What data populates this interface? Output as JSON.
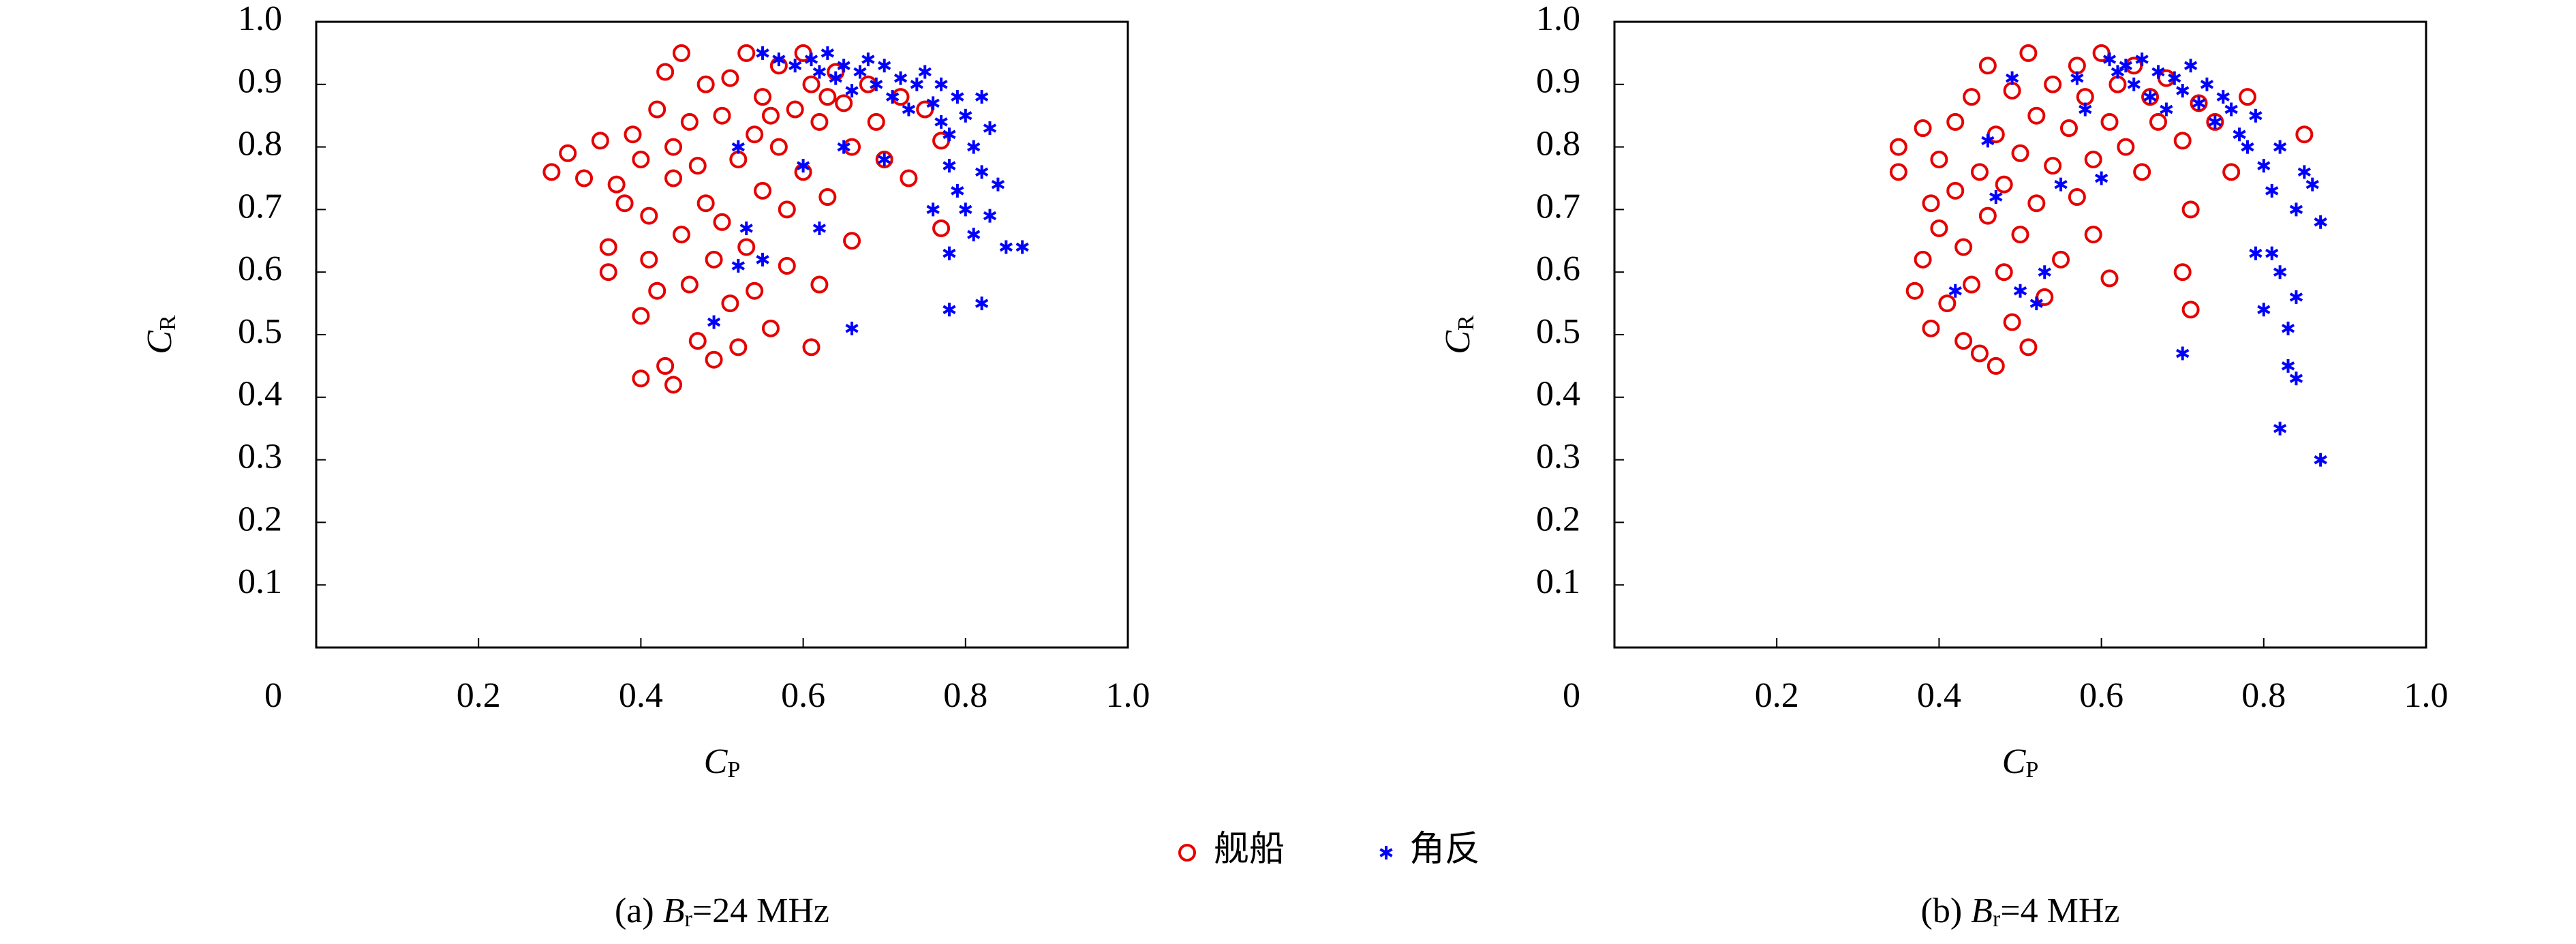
{
  "chart_data": [
    {
      "type": "scatter",
      "xlabel": {
        "symbol": "C",
        "subscript": "P"
      },
      "ylabel": {
        "symbol": "C",
        "subscript": "R"
      },
      "caption": {
        "prefix": "(a) ",
        "symbol": "B",
        "subscript": "r",
        "suffix": "=24 MHz"
      },
      "xlim": [
        0,
        1
      ],
      "ylim": [
        0,
        1
      ],
      "xticks": [
        0,
        0.2,
        0.4,
        0.6,
        0.8,
        {
          "value": 1,
          "label": "1.0"
        }
      ],
      "yticks": [
        0.1,
        0.2,
        0.3,
        0.4,
        0.5,
        0.6,
        0.7,
        0.8,
        0.9,
        {
          "value": 1,
          "label": "1.0"
        }
      ],
      "series": [
        {
          "name": "舰船",
          "color": "#e60000",
          "marker": "circle",
          "x": [
            0.29,
            0.31,
            0.33,
            0.35,
            0.36,
            0.36,
            0.37,
            0.38,
            0.39,
            0.4,
            0.4,
            0.4,
            0.41,
            0.41,
            0.42,
            0.42,
            0.43,
            0.43,
            0.44,
            0.44,
            0.45,
            0.45,
            0.46,
            0.46,
            0.47,
            0.47,
            0.48,
            0.48,
            0.49,
            0.49,
            0.5,
            0.5,
            0.51,
            0.51,
            0.52,
            0.52,
            0.53,
            0.53,
            0.54,
            0.54,
            0.55,
            0.55,
            0.56,
            0.57,
            0.57,
            0.58,
            0.58,
            0.59,
            0.6,
            0.6,
            0.61,
            0.61,
            0.62,
            0.62,
            0.63,
            0.64,
            0.65,
            0.66,
            0.66,
            0.68,
            0.69,
            0.7,
            0.72,
            0.73,
            0.75,
            0.77,
            0.77,
            0.63,
            0.56,
            0.44
          ],
          "y": [
            0.76,
            0.79,
            0.75,
            0.81,
            0.64,
            0.6,
            0.74,
            0.71,
            0.82,
            0.78,
            0.53,
            0.43,
            0.62,
            0.69,
            0.86,
            0.57,
            0.92,
            0.45,
            0.42,
            0.75,
            0.95,
            0.66,
            0.84,
            0.58,
            0.49,
            0.77,
            0.9,
            0.71,
            0.62,
            0.46,
            0.85,
            0.68,
            0.91,
            0.55,
            0.78,
            0.48,
            0.95,
            0.64,
            0.82,
            0.57,
            0.88,
            0.73,
            0.51,
            0.93,
            0.8,
            0.7,
            0.61,
            0.86,
            0.95,
            0.76,
            0.48,
            0.9,
            0.84,
            0.58,
            0.72,
            0.92,
            0.87,
            0.65,
            0.8,
            0.9,
            0.84,
            0.78,
            0.88,
            0.75,
            0.86,
            0.81,
            0.67,
            0.88,
            0.85,
            0.8
          ]
        },
        {
          "name": "角反",
          "color": "#0000ff",
          "marker": "asterisk",
          "x": [
            0.55,
            0.57,
            0.59,
            0.61,
            0.62,
            0.63,
            0.64,
            0.65,
            0.66,
            0.67,
            0.68,
            0.69,
            0.7,
            0.71,
            0.72,
            0.73,
            0.74,
            0.75,
            0.76,
            0.77,
            0.77,
            0.78,
            0.78,
            0.79,
            0.79,
            0.8,
            0.8,
            0.81,
            0.81,
            0.82,
            0.82,
            0.83,
            0.83,
            0.84,
            0.85,
            0.87,
            0.78,
            0.78,
            0.82,
            0.66,
            0.62,
            0.6,
            0.65,
            0.55,
            0.53,
            0.52,
            0.49,
            0.52,
            0.7,
            0.76
          ],
          "y": [
            0.95,
            0.94,
            0.93,
            0.94,
            0.92,
            0.95,
            0.91,
            0.93,
            0.89,
            0.92,
            0.94,
            0.9,
            0.93,
            0.88,
            0.91,
            0.86,
            0.9,
            0.92,
            0.87,
            0.84,
            0.9,
            0.82,
            0.77,
            0.88,
            0.73,
            0.85,
            0.7,
            0.8,
            0.66,
            0.88,
            0.76,
            0.83,
            0.69,
            0.74,
            0.64,
            0.64,
            0.63,
            0.54,
            0.55,
            0.51,
            0.67,
            0.77,
            0.8,
            0.62,
            0.67,
            0.61,
            0.52,
            0.8,
            0.78,
            0.7
          ]
        }
      ]
    },
    {
      "type": "scatter",
      "xlabel": {
        "symbol": "C",
        "subscript": "P"
      },
      "ylabel": {
        "symbol": "C",
        "subscript": "R"
      },
      "caption": {
        "prefix": "(b) ",
        "symbol": "B",
        "subscript": "r",
        "suffix": "=4 MHz"
      },
      "xlim": [
        0,
        1
      ],
      "ylim": [
        0,
        1
      ],
      "xticks": [
        0,
        0.2,
        0.4,
        0.6,
        0.8,
        {
          "value": 1,
          "label": "1.0"
        }
      ],
      "yticks": [
        0.1,
        0.2,
        0.3,
        0.4,
        0.5,
        0.6,
        0.7,
        0.8,
        0.9,
        {
          "value": 1,
          "label": "1.0"
        }
      ],
      "series": [
        {
          "color": "#e60000",
          "marker": "circle",
          "x": [
            0.35,
            0.35,
            0.37,
            0.38,
            0.38,
            0.39,
            0.39,
            0.4,
            0.4,
            0.41,
            0.42,
            0.42,
            0.43,
            0.43,
            0.44,
            0.44,
            0.45,
            0.45,
            0.46,
            0.46,
            0.47,
            0.47,
            0.48,
            0.48,
            0.49,
            0.49,
            0.5,
            0.5,
            0.51,
            0.51,
            0.52,
            0.52,
            0.53,
            0.54,
            0.54,
            0.55,
            0.56,
            0.57,
            0.57,
            0.58,
            0.59,
            0.59,
            0.6,
            0.61,
            0.61,
            0.62,
            0.63,
            0.64,
            0.65,
            0.66,
            0.67,
            0.68,
            0.7,
            0.7,
            0.71,
            0.71,
            0.72,
            0.74,
            0.76,
            0.78,
            0.85
          ],
          "y": [
            0.76,
            0.8,
            0.57,
            0.62,
            0.83,
            0.51,
            0.71,
            0.67,
            0.78,
            0.55,
            0.73,
            0.84,
            0.49,
            0.64,
            0.88,
            0.58,
            0.47,
            0.76,
            0.93,
            0.69,
            0.45,
            0.82,
            0.6,
            0.74,
            0.89,
            0.52,
            0.66,
            0.79,
            0.95,
            0.48,
            0.71,
            0.85,
            0.56,
            0.77,
            0.9,
            0.62,
            0.83,
            0.93,
            0.72,
            0.88,
            0.78,
            0.66,
            0.95,
            0.84,
            0.59,
            0.9,
            0.8,
            0.93,
            0.76,
            0.88,
            0.84,
            0.91,
            0.81,
            0.6,
            0.54,
            0.7,
            0.87,
            0.84,
            0.76,
            0.88,
            0.82
          ]
        },
        {
          "color": "#0000ff",
          "marker": "asterisk",
          "x": [
            0.42,
            0.46,
            0.47,
            0.49,
            0.5,
            0.52,
            0.53,
            0.55,
            0.57,
            0.58,
            0.6,
            0.61,
            0.62,
            0.63,
            0.64,
            0.65,
            0.66,
            0.67,
            0.68,
            0.69,
            0.7,
            0.7,
            0.71,
            0.72,
            0.73,
            0.74,
            0.75,
            0.76,
            0.77,
            0.78,
            0.79,
            0.79,
            0.8,
            0.8,
            0.81,
            0.81,
            0.82,
            0.82,
            0.82,
            0.83,
            0.83,
            0.84,
            0.84,
            0.84,
            0.85,
            0.86,
            0.87,
            0.87
          ],
          "y": [
            0.57,
            0.81,
            0.72,
            0.91,
            0.57,
            0.55,
            0.6,
            0.74,
            0.91,
            0.86,
            0.75,
            0.94,
            0.92,
            0.93,
            0.9,
            0.94,
            0.88,
            0.92,
            0.86,
            0.91,
            0.89,
            0.47,
            0.93,
            0.87,
            0.9,
            0.84,
            0.88,
            0.86,
            0.82,
            0.8,
            0.85,
            0.63,
            0.77,
            0.54,
            0.73,
            0.63,
            0.8,
            0.6,
            0.35,
            0.51,
            0.45,
            0.7,
            0.56,
            0.43,
            0.76,
            0.74,
            0.68,
            0.3
          ]
        }
      ]
    }
  ]
}
